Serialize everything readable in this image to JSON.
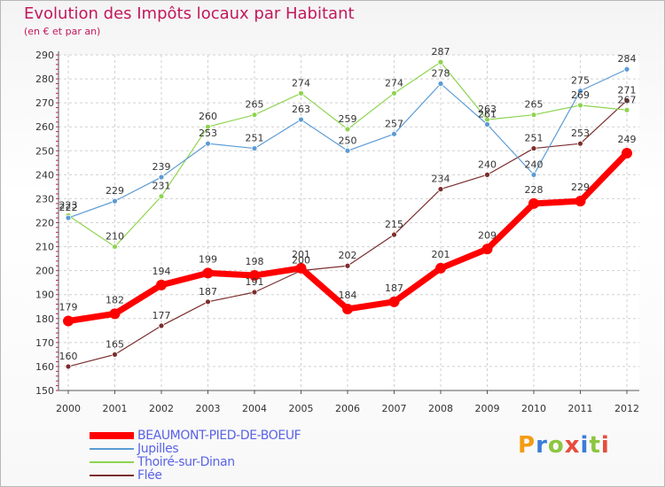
{
  "header": {
    "title": "Evolution des Impôts locaux par Habitant",
    "subtitle": "(en € et par an)"
  },
  "logo": {
    "text": "Proxiti",
    "colors": [
      "#f39c12",
      "#3b7dd8",
      "#8dc63f",
      "#e74c3c",
      "#3b7dd8",
      "#8dc63f",
      "#e74c3c"
    ]
  },
  "chart_data": {
    "type": "line",
    "title": "Evolution des Impôts locaux par Habitant",
    "subtitle": "(en € et par an)",
    "categories": [
      "2000",
      "2001",
      "2002",
      "2003",
      "2004",
      "2005",
      "2006",
      "2007",
      "2008",
      "2009",
      "2010",
      "2011",
      "2012"
    ],
    "ylim": [
      150,
      290
    ],
    "yticks": [
      150,
      160,
      170,
      180,
      190,
      200,
      210,
      220,
      230,
      240,
      250,
      260,
      270,
      280,
      290
    ],
    "grid": true,
    "legend_position": "bottom-left",
    "series": [
      {
        "name": "BEAUMONT-PIED-DE-BOEUF",
        "color": "#ff0000",
        "values": [
          179,
          182,
          194,
          199,
          198,
          201,
          184,
          187,
          201,
          209,
          228,
          229,
          249
        ]
      },
      {
        "name": "Jupilles",
        "color": "#5b9bd5",
        "values": [
          222,
          229,
          239,
          253,
          251,
          263,
          250,
          257,
          278,
          261,
          240,
          275,
          284
        ]
      },
      {
        "name": "Thoiré-sur-Dinan",
        "color": "#8ed44f",
        "values": [
          223,
          210,
          231,
          260,
          265,
          274,
          259,
          274,
          287,
          263,
          265,
          269,
          267
        ]
      },
      {
        "name": "Flée",
        "color": "#7b2d2d",
        "values": [
          160,
          165,
          177,
          187,
          191,
          200,
          202,
          215,
          234,
          240,
          251,
          253,
          271
        ]
      }
    ]
  }
}
